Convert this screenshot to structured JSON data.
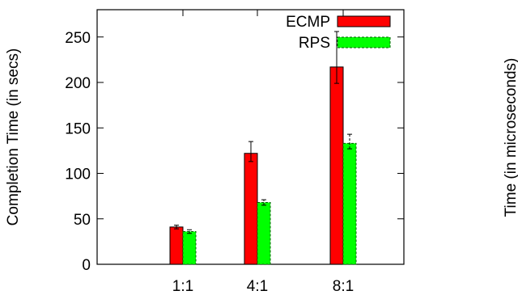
{
  "chart_data": [
    {
      "type": "bar",
      "ylabel": "Completion Time (in secs)",
      "ylim": [
        0,
        280
      ],
      "yticks": [
        0,
        50,
        100,
        150,
        200,
        250
      ],
      "categories": [
        "1:1",
        "4:1",
        "8:1"
      ],
      "grid": false,
      "legend_position": "top-right",
      "series": [
        {
          "name": "ECMP",
          "color": "#ff0000",
          "values": [
            41,
            122,
            217
          ],
          "error_low": [
            39,
            113,
            199
          ],
          "error_high": [
            43,
            135,
            256
          ]
        },
        {
          "name": "RPS",
          "color": "#00ff00",
          "values": [
            36,
            68,
            133
          ],
          "error_low": [
            34,
            65,
            127
          ],
          "error_high": [
            38,
            71,
            143
          ]
        }
      ]
    },
    {
      "type": "bar",
      "ylabel": "Time (in microseconds)",
      "note": "second panel cropped at image edge; only its y-axis label is visible"
    }
  ]
}
